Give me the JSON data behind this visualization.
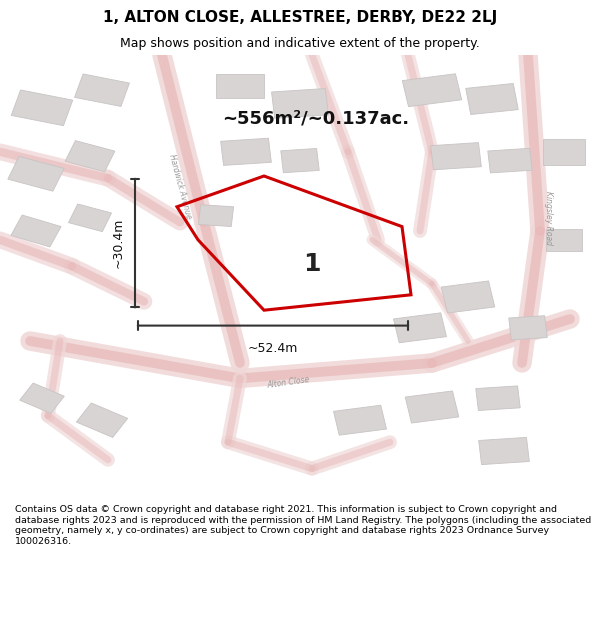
{
  "title_line1": "1, ALTON CLOSE, ALLESTREE, DERBY, DE22 2LJ",
  "title_line2": "Map shows position and indicative extent of the property.",
  "area_text": "~556m²/~0.137ac.",
  "dim_width": "~52.4m",
  "dim_height": "~30.4m",
  "label": "1",
  "footer_text": "Contains OS data © Crown copyright and database right 2021. This information is subject to Crown copyright and database rights 2023 and is reproduced with the permission of HM Land Registry. The polygons (including the associated geometry, namely x, y co-ordinates) are subject to Crown copyright and database rights 2023 Ordnance Survey 100026316.",
  "bg_color": "#f5f3f3",
  "road_color": "#e8b8b8",
  "road_fill": "#f0d8d8",
  "building_fill": "#d8d4d4",
  "building_edge": "#c8c4c4",
  "highlight_color": "#cc0000",
  "dim_color": "#333333",
  "title_bg": "#ffffff",
  "footer_bg": "#ffffff",
  "figsize": [
    6.0,
    6.25
  ],
  "dpi": 100
}
